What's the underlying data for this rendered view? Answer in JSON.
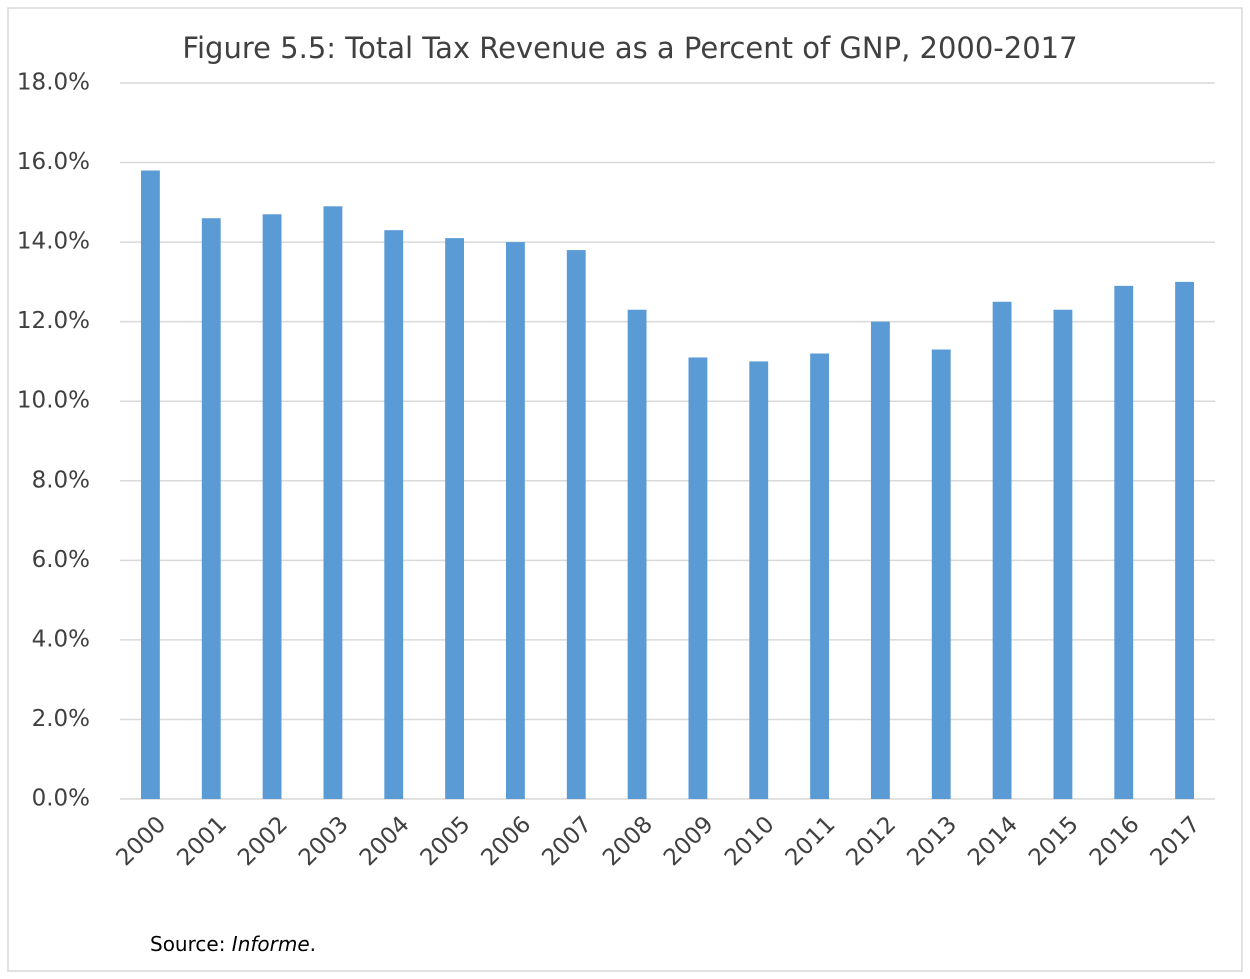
{
  "chart_data": {
    "type": "bar",
    "title": "Figure 5.5: Total Tax Revenue as a Percent of GNP, 2000-2017",
    "categories": [
      "2000",
      "2001",
      "2002",
      "2003",
      "2004",
      "2005",
      "2006",
      "2007",
      "2008",
      "2009",
      "2010",
      "2011",
      "2012",
      "2013",
      "2014",
      "2015",
      "2016",
      "2017"
    ],
    "values": [
      15.8,
      14.6,
      14.7,
      14.9,
      14.3,
      14.1,
      14.0,
      13.8,
      12.3,
      11.1,
      11.0,
      11.2,
      12.0,
      11.3,
      12.5,
      12.3,
      12.9,
      13.0
    ],
    "color": "#5b9bd5",
    "ylim": [
      0,
      18
    ],
    "yticks": [
      {
        "value": 0,
        "label": "0.0%"
      },
      {
        "value": 2,
        "label": "2.0%"
      },
      {
        "value": 4,
        "label": "4.0%"
      },
      {
        "value": 6,
        "label": "6.0%"
      },
      {
        "value": 8,
        "label": "8.0%"
      },
      {
        "value": 10,
        "label": "10.0%"
      },
      {
        "value": 12,
        "label": "12.0%"
      },
      {
        "value": 14,
        "label": "14.0%"
      },
      {
        "value": 16,
        "label": "16.0%"
      },
      {
        "value": 18,
        "label": "18.0%"
      }
    ],
    "grid": true,
    "source": {
      "prefix": "Source: ",
      "emphasis": "Informe",
      "suffix": "."
    }
  }
}
